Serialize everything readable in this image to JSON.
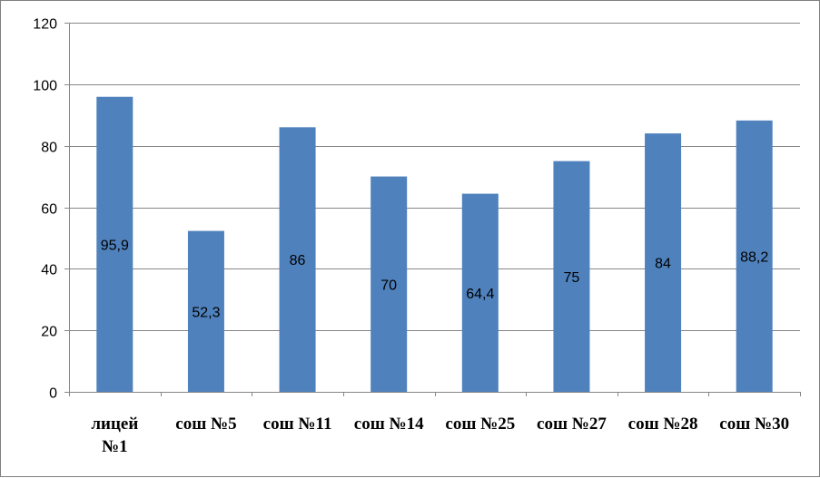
{
  "chart_data": {
    "type": "bar",
    "categories": [
      "лицей №1",
      "сош №5",
      "сош №11",
      "сош №14",
      "сош №25",
      "сош №27",
      "сош №28",
      "сош №30"
    ],
    "category_lines": [
      [
        "лицей",
        "№1"
      ],
      [
        "сош №5"
      ],
      [
        "сош №11"
      ],
      [
        "сош №14"
      ],
      [
        "сош №25"
      ],
      [
        "сош №27"
      ],
      [
        "сош №28"
      ],
      [
        "сош №30"
      ]
    ],
    "values": [
      95.9,
      52.3,
      86,
      70,
      64.4,
      75,
      84,
      88.2
    ],
    "data_labels": [
      "95,9",
      "52,3",
      "86",
      "70",
      "64,4",
      "75",
      "84",
      "88,2"
    ],
    "yticks": [
      0,
      20,
      40,
      60,
      80,
      100,
      120
    ],
    "ylim": [
      0,
      120
    ],
    "grid": true,
    "legend": "none",
    "bar_color": "#4f81bd",
    "title": "",
    "xlabel": "",
    "ylabel": ""
  }
}
